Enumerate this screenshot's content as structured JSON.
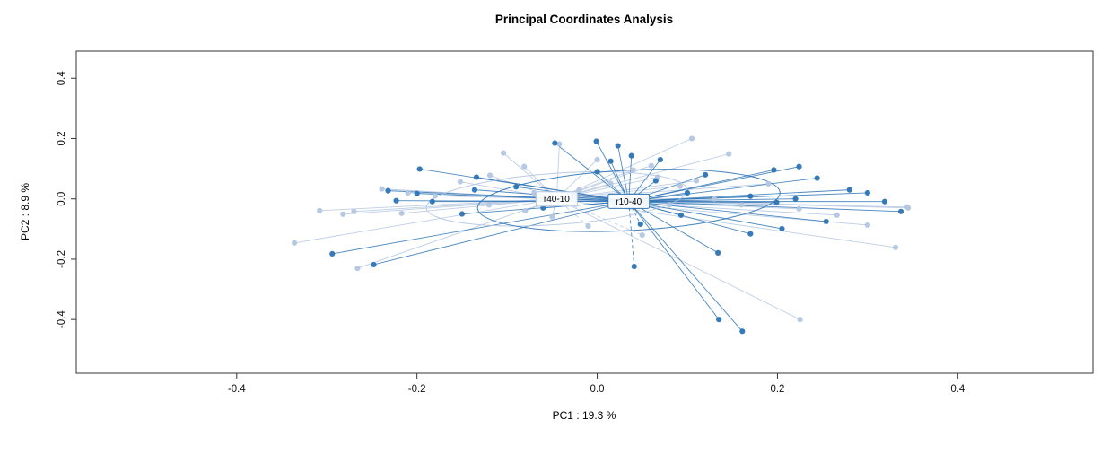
{
  "chart_data": {
    "type": "scatter",
    "title": "Principal Coordinates Analysis",
    "xlabel": "PC1 :  19.3 %",
    "ylabel": "PC2 :  8.9 %",
    "xlim": [
      -0.578,
      0.55
    ],
    "ylim": [
      -0.578,
      0.49
    ],
    "xticks": [
      -0.4,
      -0.2,
      0.0,
      0.2,
      0.4
    ],
    "yticks": [
      -0.4,
      -0.2,
      0.0,
      0.2,
      0.4
    ],
    "grid": false,
    "legend_position": "none",
    "frame_color": "#333333",
    "groups": [
      {
        "name": "r40-10",
        "point_color": "#b3c6e2",
        "line_color": "#b3c6e2",
        "label_text_color": "#a9bedd",
        "centroid": [
          -0.045,
          0.0
        ],
        "ellipse": {
          "cx": -0.045,
          "cy": 0.0,
          "rx": 0.145,
          "ry": 0.085,
          "angle": -4
        },
        "dashed_point_indices": [
          25,
          26
        ],
        "points": [
          [
            -0.042,
            0.182
          ],
          [
            0.105,
            0.2
          ],
          [
            0.146,
            0.149
          ],
          [
            -0.104,
            0.152
          ],
          [
            -0.081,
            0.107
          ],
          [
            -0.119,
            0.078
          ],
          [
            -0.152,
            0.057
          ],
          [
            0.04,
            0.096
          ],
          [
            0.067,
            0.072
          ],
          [
            -0.239,
            0.033
          ],
          [
            -0.27,
            -0.042
          ],
          [
            -0.282,
            -0.051
          ],
          [
            -0.217,
            -0.048
          ],
          [
            -0.308,
            -0.039
          ],
          [
            -0.336,
            -0.146
          ],
          [
            -0.266,
            -0.23
          ],
          [
            0.266,
            -0.054
          ],
          [
            0.3,
            -0.087
          ],
          [
            0.331,
            -0.161
          ],
          [
            0.344,
            -0.027
          ],
          [
            0.224,
            -0.033
          ],
          [
            0.225,
            -0.4
          ],
          [
            0.092,
            0.042
          ],
          [
            0.015,
            0.051
          ],
          [
            -0.05,
            -0.06
          ],
          [
            -0.01,
            -0.09
          ],
          [
            0.05,
            -0.12
          ],
          [
            -0.18,
            0.01
          ],
          [
            -0.21,
            0.02
          ],
          [
            0.13,
            0.0
          ],
          [
            0.19,
            0.05
          ],
          [
            -0.07,
            0.02
          ],
          [
            0.0,
            0.13
          ],
          [
            0.08,
            -0.02
          ],
          [
            -0.12,
            -0.02
          ],
          [
            0.345,
            -0.03
          ],
          [
            -0.02,
            0.03
          ],
          [
            0.03,
            0.01
          ],
          [
            -0.08,
            -0.04
          ],
          [
            0.06,
            0.11
          ],
          [
            0.11,
            0.06
          ],
          [
            0.16,
            -0.02
          ]
        ]
      },
      {
        "name": "r10-40",
        "point_color": "#2e74b5",
        "line_color": "#2e74b5",
        "label_text_color": "#2e74b5",
        "centroid": [
          0.035,
          -0.008
        ],
        "ellipse": {
          "cx": 0.035,
          "cy": -0.005,
          "rx": 0.168,
          "ry": 0.1,
          "angle": -3
        },
        "dashed_point_indices": [
          28,
          42
        ],
        "points": [
          [
            -0.047,
            0.185
          ],
          [
            -0.001,
            0.191
          ],
          [
            0.023,
            0.176
          ],
          [
            0.015,
            0.125
          ],
          [
            0.038,
            0.143
          ],
          [
            -0.197,
            0.099
          ],
          [
            -0.134,
            0.072
          ],
          [
            0.196,
            0.096
          ],
          [
            0.224,
            0.107
          ],
          [
            0.244,
            0.069
          ],
          [
            -0.232,
            0.027
          ],
          [
            -0.2,
            0.018
          ],
          [
            -0.223,
            -0.006
          ],
          [
            -0.183,
            -0.009
          ],
          [
            -0.136,
            0.03
          ],
          [
            0.17,
            0.009
          ],
          [
            0.199,
            -0.012
          ],
          [
            0.319,
            -0.009
          ],
          [
            0.337,
            -0.042
          ],
          [
            0.254,
            -0.075
          ],
          [
            0.205,
            -0.099
          ],
          [
            0.17,
            -0.116
          ],
          [
            0.134,
            -0.179
          ],
          [
            -0.294,
            -0.182
          ],
          [
            -0.248,
            -0.218
          ],
          [
            0.135,
            -0.4
          ],
          [
            0.161,
            -0.439
          ],
          [
            0.093,
            -0.054
          ],
          [
            0.048,
            -0.084
          ],
          [
            -0.026,
            0.012
          ],
          [
            0.065,
            0.06
          ],
          [
            -0.06,
            -0.03
          ],
          [
            0.02,
            -0.02
          ],
          [
            0.1,
            0.02
          ],
          [
            -0.09,
            0.04
          ],
          [
            0.28,
            0.03
          ],
          [
            0.12,
            0.08
          ],
          [
            0.22,
            0.0
          ],
          [
            0.3,
            0.02
          ],
          [
            -0.15,
            -0.05
          ],
          [
            0.0,
            0.09
          ],
          [
            0.07,
            0.13
          ],
          [
            0.041,
            -0.224
          ]
        ]
      }
    ]
  }
}
